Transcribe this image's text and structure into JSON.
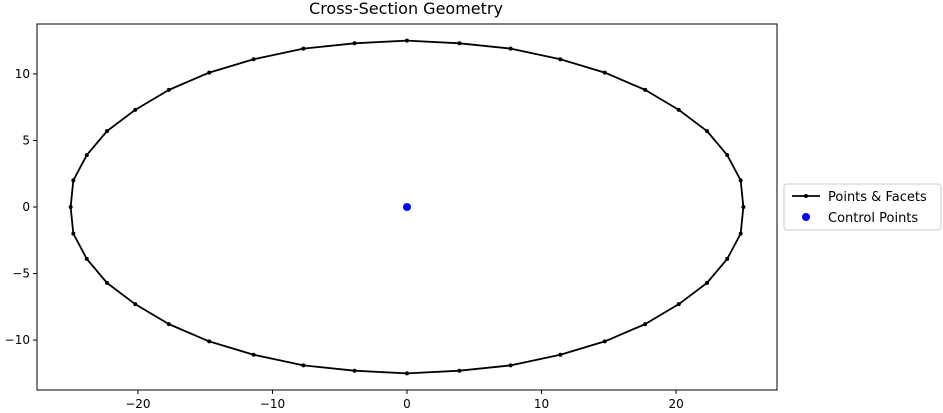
{
  "chart_data": {
    "type": "line",
    "title": "Cross-Section Geometry",
    "xlabel": "",
    "ylabel": "",
    "xlim": [
      -27.5,
      27.5
    ],
    "ylim": [
      -13.75,
      13.75
    ],
    "xticks": [
      -20,
      -10,
      0,
      10,
      20
    ],
    "yticks": [
      -10,
      -5,
      0,
      5,
      10
    ],
    "xtick_labels": [
      "−20",
      "−10",
      "0",
      "10",
      "20"
    ],
    "ytick_labels": [
      "−10",
      "−5",
      "0",
      "5",
      "10"
    ],
    "grid": false,
    "legend_placement": "outside-right",
    "series": [
      {
        "name": "Points & Facets",
        "style": "line-with-point-markers",
        "color": "#000000",
        "closed": true,
        "x": [
          25.0,
          24.8,
          23.8,
          22.3,
          20.2,
          17.7,
          14.7,
          11.4,
          7.7,
          3.9,
          0.0,
          -3.9,
          -7.7,
          -11.4,
          -14.7,
          -17.7,
          -20.2,
          -22.3,
          -23.8,
          -24.8,
          -25.0,
          -24.8,
          -23.8,
          -22.3,
          -20.2,
          -17.7,
          -14.7,
          -11.4,
          -7.7,
          -3.9,
          0.0,
          3.9,
          7.7,
          11.4,
          14.7,
          17.7,
          20.2,
          22.3,
          23.8,
          24.8
        ],
        "y": [
          0.0,
          2.0,
          3.9,
          5.7,
          7.3,
          8.8,
          10.1,
          11.1,
          11.9,
          12.3,
          12.5,
          12.3,
          11.9,
          11.1,
          10.1,
          8.8,
          7.3,
          5.7,
          3.9,
          2.0,
          0.0,
          -2.0,
          -3.9,
          -5.7,
          -7.3,
          -8.8,
          -10.1,
          -11.1,
          -11.9,
          -12.3,
          -12.5,
          -12.3,
          -11.9,
          -11.1,
          -10.1,
          -8.8,
          -7.3,
          -5.7,
          -3.9,
          -2.0
        ]
      },
      {
        "name": "Control Points",
        "style": "markers",
        "color": "#0000ff",
        "x": [
          0.0
        ],
        "y": [
          0.0
        ]
      }
    ]
  }
}
